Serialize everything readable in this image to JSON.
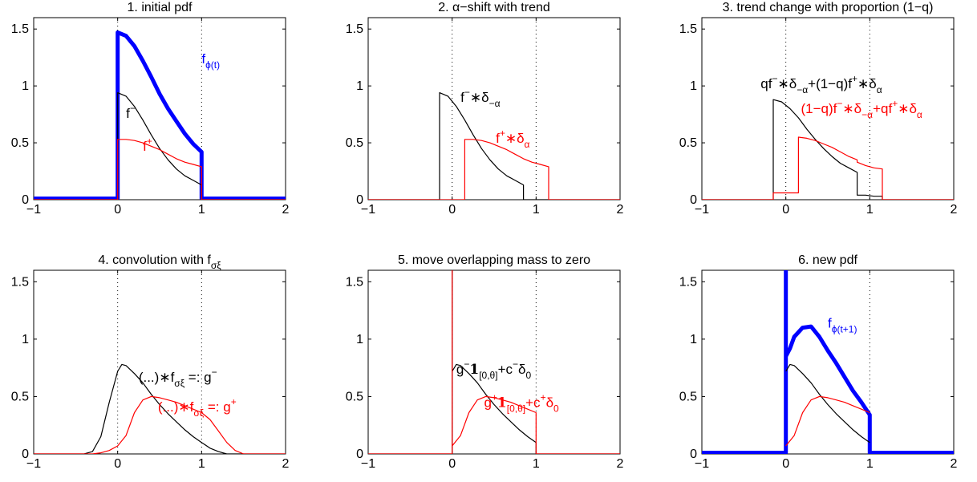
{
  "chart_data": [
    {
      "type": "line",
      "title": "1. initial pdf",
      "xlim": [
        -1,
        2
      ],
      "ylim": [
        0,
        1.6
      ],
      "xticks": [
        "-1",
        "0",
        "1",
        "2"
      ],
      "yticks": [
        "0",
        "0.5",
        "1",
        "1.5"
      ],
      "grid": "dotted vertical at x=0 and x=1",
      "series": [
        {
          "name": "f_phi(t)",
          "color": "#0000ff",
          "width": "thick",
          "x": [
            -1,
            0,
            0,
            0.1,
            0.2,
            0.3,
            0.4,
            0.5,
            0.6,
            0.7,
            0.8,
            0.9,
            1,
            1,
            2
          ],
          "y": [
            0.01,
            0.01,
            1.47,
            1.44,
            1.35,
            1.22,
            1.08,
            0.93,
            0.8,
            0.69,
            0.58,
            0.49,
            0.42,
            0.01,
            0.01
          ]
        },
        {
          "name": "f-",
          "color": "#000000",
          "width": "thin",
          "x": [
            -1,
            0,
            0,
            0.1,
            0.2,
            0.3,
            0.4,
            0.5,
            0.6,
            0.7,
            0.8,
            0.9,
            1,
            1,
            2
          ],
          "y": [
            0,
            0,
            0.94,
            0.91,
            0.82,
            0.7,
            0.57,
            0.45,
            0.35,
            0.27,
            0.21,
            0.17,
            0.13,
            0,
            0
          ]
        },
        {
          "name": "f+",
          "color": "#ff0000",
          "width": "thin",
          "x": [
            -1,
            0,
            0,
            0.1,
            0.2,
            0.3,
            0.4,
            0.5,
            0.6,
            0.7,
            0.8,
            0.9,
            1,
            1,
            2
          ],
          "y": [
            0,
            0,
            0.53,
            0.53,
            0.52,
            0.5,
            0.47,
            0.44,
            0.4,
            0.36,
            0.33,
            0.31,
            0.29,
            0,
            0
          ]
        }
      ],
      "annotations": [
        {
          "parts": [
            [
              "f",
              ""
            ],
            [
              "ϕ(t)",
              "sub"
            ]
          ],
          "color": "#0000ff",
          "x": 1.0,
          "y": 1.2
        },
        {
          "parts": [
            [
              "f",
              ""
            ],
            [
              "−",
              "sup"
            ]
          ],
          "color": "#000000",
          "x": 0.1,
          "y": 0.72
        },
        {
          "parts": [
            [
              "f",
              ""
            ],
            [
              "+",
              "sup"
            ]
          ],
          "color": "#ff0000",
          "x": 0.3,
          "y": 0.43
        }
      ]
    },
    {
      "type": "line",
      "title": "2. α−shift with trend",
      "xlim": [
        -1,
        2
      ],
      "ylim": [
        0,
        1.6
      ],
      "xticks": [
        "-1",
        "0",
        "1",
        "2"
      ],
      "yticks": [
        "0",
        "0.5",
        "1",
        "1.5"
      ],
      "grid": "dotted vertical at x=0 and x=1",
      "series": [
        {
          "name": "f- * delta_-alpha",
          "color": "#000000",
          "width": "thin",
          "x": [
            -1,
            -0.15,
            -0.15,
            -0.05,
            0.05,
            0.15,
            0.25,
            0.35,
            0.45,
            0.55,
            0.65,
            0.75,
            0.85,
            0.85,
            2
          ],
          "y": [
            0,
            0,
            0.94,
            0.91,
            0.82,
            0.7,
            0.57,
            0.45,
            0.35,
            0.27,
            0.21,
            0.17,
            0.13,
            0,
            0
          ]
        },
        {
          "name": "f+ * delta_alpha",
          "color": "#ff0000",
          "width": "thin",
          "x": [
            -1,
            0.15,
            0.15,
            0.25,
            0.35,
            0.45,
            0.55,
            0.65,
            0.75,
            0.85,
            0.95,
            1.05,
            1.15,
            1.15,
            2
          ],
          "y": [
            0,
            0,
            0.53,
            0.53,
            0.52,
            0.5,
            0.47,
            0.44,
            0.4,
            0.36,
            0.33,
            0.31,
            0.29,
            0,
            0
          ]
        }
      ],
      "annotations": [
        {
          "parts": [
            [
              "f",
              ""
            ],
            [
              "−",
              "sup"
            ],
            [
              "∗δ",
              ""
            ],
            [
              "−α",
              "sub"
            ]
          ],
          "color": "#000000",
          "x": 0.1,
          "y": 0.86
        },
        {
          "parts": [
            [
              "f",
              ""
            ],
            [
              "+",
              "sup"
            ],
            [
              "∗δ",
              ""
            ],
            [
              "α",
              "sub"
            ]
          ],
          "color": "#ff0000",
          "x": 0.52,
          "y": 0.5
        }
      ]
    },
    {
      "type": "line",
      "title": "3. trend change with proportion (1−q)",
      "xlim": [
        -1,
        2
      ],
      "ylim": [
        0,
        1.6
      ],
      "xticks": [
        "-1",
        "0",
        "1",
        "2"
      ],
      "yticks": [
        "0",
        "0.5",
        "1",
        "1.5"
      ],
      "grid": "dotted vertical at x=0 and x=1",
      "series": [
        {
          "name": "qf-*delta_-alpha + (1-q)f+*delta_alpha",
          "color": "#000000",
          "width": "thin",
          "x": [
            -1,
            -0.15,
            -0.15,
            -0.05,
            0.05,
            0.15,
            0.15,
            0.25,
            0.35,
            0.45,
            0.55,
            0.65,
            0.75,
            0.85,
            0.85,
            0.95,
            1.05,
            1.15,
            1.15,
            2
          ],
          "y": [
            0,
            0,
            0.88,
            0.86,
            0.8,
            0.72,
            0.72,
            0.62,
            0.53,
            0.45,
            0.38,
            0.32,
            0.28,
            0.24,
            0.04,
            0.04,
            0.03,
            0.03,
            0,
            0
          ]
        },
        {
          "name": "(1-q)f-*delta_-alpha + qf+*delta_alpha",
          "color": "#ff0000",
          "width": "thin",
          "x": [
            -1,
            -0.15,
            -0.15,
            -0.05,
            0.05,
            0.15,
            0.15,
            0.25,
            0.35,
            0.45,
            0.55,
            0.65,
            0.75,
            0.85,
            0.85,
            0.95,
            1.05,
            1.15,
            1.15,
            2
          ],
          "y": [
            0,
            0,
            0.06,
            0.06,
            0.06,
            0.06,
            0.55,
            0.54,
            0.52,
            0.49,
            0.46,
            0.42,
            0.38,
            0.35,
            0.33,
            0.3,
            0.28,
            0.27,
            0,
            0
          ]
        }
      ],
      "annotations": [
        {
          "parts": [
            [
              "qf",
              ""
            ],
            [
              "−",
              "sup"
            ],
            [
              "∗δ",
              ""
            ],
            [
              "−α",
              "sub"
            ],
            [
              "+(1−q)f",
              ""
            ],
            [
              "+",
              "sup"
            ],
            [
              "∗δ",
              ""
            ],
            [
              "α",
              "sub"
            ]
          ],
          "color": "#000000",
          "x": -0.3,
          "y": 0.98
        },
        {
          "parts": [
            [
              "(1−q)f",
              ""
            ],
            [
              "−",
              "sup"
            ],
            [
              "∗δ",
              ""
            ],
            [
              "−α",
              "sub"
            ],
            [
              "+qf",
              ""
            ],
            [
              "+",
              "sup"
            ],
            [
              "∗δ",
              ""
            ],
            [
              "α",
              "sub"
            ]
          ],
          "color": "#ff0000",
          "x": 0.18,
          "y": 0.76
        }
      ]
    },
    {
      "type": "line",
      "title": "4. convolution with f",
      "title_sub": "σξ",
      "xlim": [
        -1,
        2
      ],
      "ylim": [
        0,
        1.6
      ],
      "xticks": [
        "-1",
        "0",
        "1",
        "2"
      ],
      "yticks": [
        "0",
        "0.5",
        "1",
        "1.5"
      ],
      "grid": "dotted vertical at x=0 and x=1",
      "series": [
        {
          "name": "g-",
          "color": "#000000",
          "width": "thin",
          "x": [
            -1,
            -0.4,
            -0.3,
            -0.2,
            -0.1,
            0,
            0.05,
            0.1,
            0.2,
            0.3,
            0.4,
            0.5,
            0.6,
            0.7,
            0.8,
            0.9,
            1.0,
            1.1,
            1.2,
            1.3,
            2
          ],
          "y": [
            0,
            0,
            0.02,
            0.15,
            0.45,
            0.72,
            0.78,
            0.77,
            0.7,
            0.62,
            0.52,
            0.43,
            0.35,
            0.28,
            0.21,
            0.15,
            0.1,
            0.05,
            0.02,
            0,
            0
          ]
        },
        {
          "name": "g+",
          "color": "#ff0000",
          "width": "thin",
          "x": [
            -1,
            -0.3,
            -0.2,
            -0.1,
            0,
            0.1,
            0.2,
            0.3,
            0.4,
            0.5,
            0.6,
            0.7,
            0.8,
            0.9,
            1.0,
            1.1,
            1.2,
            1.3,
            1.4,
            1.5,
            2
          ],
          "y": [
            0,
            0,
            0.01,
            0.03,
            0.07,
            0.16,
            0.36,
            0.47,
            0.5,
            0.49,
            0.47,
            0.45,
            0.42,
            0.39,
            0.36,
            0.3,
            0.2,
            0.1,
            0.03,
            0,
            0
          ]
        }
      ],
      "annotations": [
        {
          "parts": [
            [
              "(...)∗f",
              ""
            ],
            [
              "σξ",
              "sub"
            ],
            [
              " =: g",
              ""
            ],
            [
              "−",
              "sup"
            ]
          ],
          "color": "#000000",
          "x": 0.25,
          "y": 0.63
        },
        {
          "parts": [
            [
              "(...)∗f",
              ""
            ],
            [
              "σξ",
              "sub"
            ],
            [
              " =: g",
              ""
            ],
            [
              "+",
              "sup"
            ]
          ],
          "color": "#ff0000",
          "x": 0.48,
          "y": 0.37
        }
      ]
    },
    {
      "type": "line",
      "title": "5. move overlapping mass to zero",
      "xlim": [
        -1,
        2
      ],
      "ylim": [
        0,
        1.6
      ],
      "xticks": [
        "-1",
        "0",
        "1",
        "2"
      ],
      "yticks": [
        "0",
        "0.5",
        "1",
        "1.5"
      ],
      "grid": "dotted vertical at x=0 and x=1",
      "series": [
        {
          "name": "g- 1[0,theta] + c- delta_0",
          "color": "#000000",
          "width": "thin",
          "x": [
            -1,
            0,
            0,
            0,
            0.05,
            0.1,
            0.2,
            0.3,
            0.4,
            0.5,
            0.6,
            0.7,
            0.8,
            0.9,
            1.0,
            1.0,
            2
          ],
          "y": [
            0,
            0,
            1.6,
            0.72,
            0.78,
            0.77,
            0.7,
            0.62,
            0.52,
            0.43,
            0.35,
            0.28,
            0.21,
            0.15,
            0.1,
            0,
            0
          ]
        },
        {
          "name": "g+ 1[0,theta] + c+ delta_0",
          "color": "#ff0000",
          "width": "thin",
          "x": [
            -1,
            0,
            0,
            0,
            0.1,
            0.2,
            0.3,
            0.4,
            0.5,
            0.6,
            0.7,
            0.8,
            0.9,
            1.0,
            1.0,
            2
          ],
          "y": [
            0,
            0,
            1.6,
            0.07,
            0.16,
            0.36,
            0.47,
            0.5,
            0.49,
            0.47,
            0.45,
            0.42,
            0.39,
            0.36,
            0,
            0
          ]
        }
      ],
      "annotations": [
        {
          "parts": [
            [
              "g",
              ""
            ],
            [
              "−",
              "sup"
            ],
            [
              "1",
              "bold"
            ],
            [
              "[0,θ]",
              "sub"
            ],
            [
              "+c",
              ""
            ],
            [
              "−",
              "sup"
            ],
            [
              "δ",
              ""
            ],
            [
              "0",
              "sub"
            ]
          ],
          "color": "#000000",
          "x": 0.05,
          "y": 0.7
        },
        {
          "parts": [
            [
              "g",
              ""
            ],
            [
              "+",
              "sup"
            ],
            [
              "1",
              "bold"
            ],
            [
              "[0,θ]",
              "sub"
            ],
            [
              "+c",
              ""
            ],
            [
              "+",
              "sup"
            ],
            [
              "δ",
              ""
            ],
            [
              "0",
              "sub"
            ]
          ],
          "color": "#ff0000",
          "x": 0.38,
          "y": 0.41
        }
      ]
    },
    {
      "type": "line",
      "title": "6. new pdf",
      "xlim": [
        -1,
        2
      ],
      "ylim": [
        0,
        1.6
      ],
      "xticks": [
        "-1",
        "0",
        "1",
        "2"
      ],
      "yticks": [
        "0",
        "0.5",
        "1",
        "1.5"
      ],
      "grid": "dotted vertical at x=0 and x=1",
      "series": [
        {
          "name": "f_phi(t+1)",
          "color": "#0000ff",
          "width": "thick",
          "x": [
            -1,
            0,
            0,
            0,
            0.05,
            0.1,
            0.2,
            0.3,
            0.4,
            0.5,
            0.6,
            0.7,
            0.8,
            0.9,
            1.0,
            1.0,
            2
          ],
          "y": [
            0.01,
            0.01,
            1.6,
            0.85,
            0.92,
            1.02,
            1.1,
            1.11,
            1.02,
            0.9,
            0.79,
            0.67,
            0.55,
            0.45,
            0.34,
            0.01,
            0.01
          ]
        },
        {
          "name": "g-",
          "color": "#000000",
          "width": "thin",
          "x": [
            0,
            0.05,
            0.1,
            0.2,
            0.3,
            0.4,
            0.5,
            0.6,
            0.7,
            0.8,
            0.9,
            1.0
          ],
          "y": [
            0.72,
            0.78,
            0.77,
            0.7,
            0.62,
            0.52,
            0.43,
            0.35,
            0.28,
            0.21,
            0.15,
            0.1
          ]
        },
        {
          "name": "g+",
          "color": "#ff0000",
          "width": "thin",
          "x": [
            0,
            0.1,
            0.2,
            0.3,
            0.4,
            0.5,
            0.6,
            0.7,
            0.8,
            0.9,
            1.0
          ],
          "y": [
            0.07,
            0.16,
            0.36,
            0.47,
            0.5,
            0.49,
            0.47,
            0.45,
            0.42,
            0.39,
            0.36
          ]
        }
      ],
      "annotations": [
        {
          "parts": [
            [
              "f",
              ""
            ],
            [
              "ϕ(t+1)",
              "sub"
            ]
          ],
          "color": "#0000ff",
          "x": 0.5,
          "y": 1.1
        }
      ]
    }
  ]
}
